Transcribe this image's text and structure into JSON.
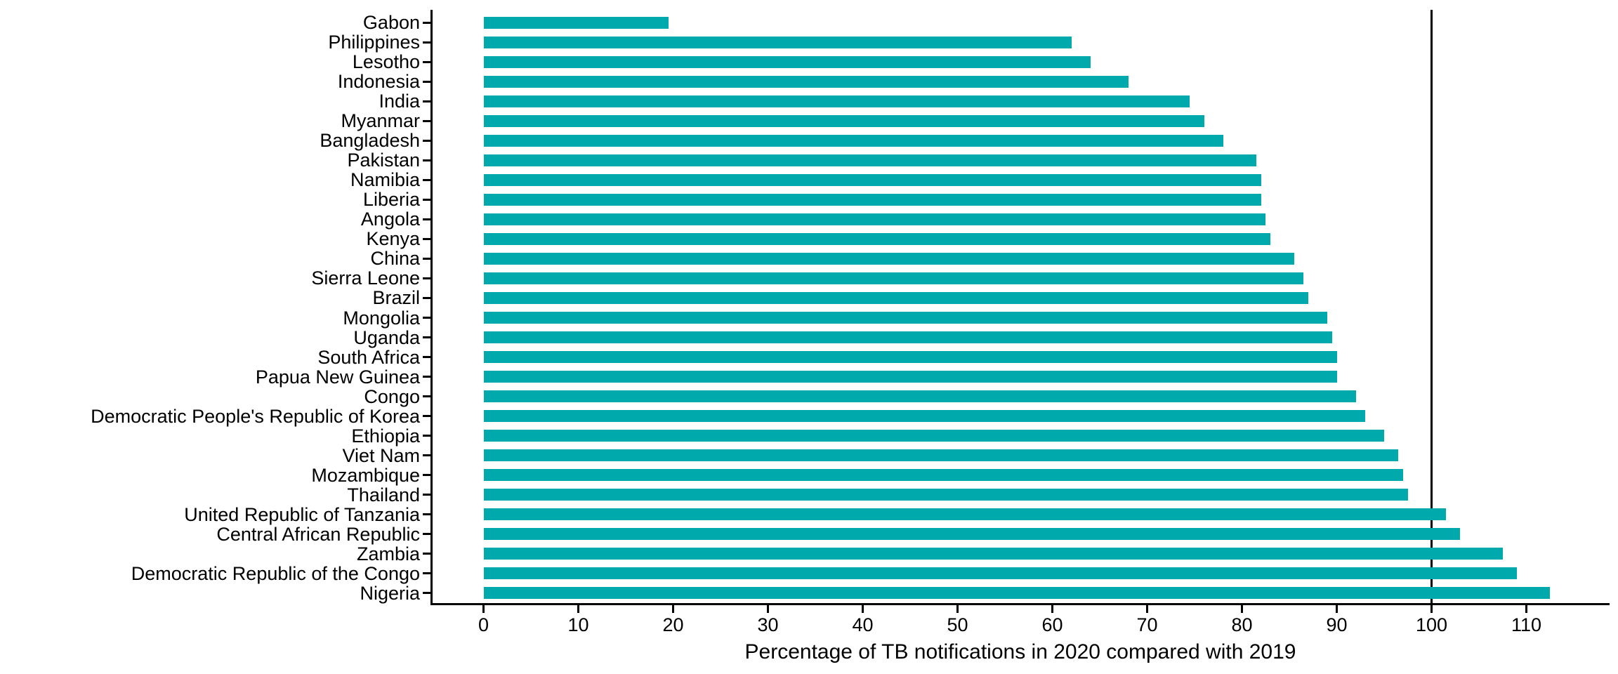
{
  "chart_data": {
    "type": "bar",
    "orientation": "horizontal",
    "title": "",
    "xlabel": "Percentage of TB notifications in 2020 compared with 2019",
    "ylabel": "",
    "categories": [
      "Gabon",
      "Philippines",
      "Lesotho",
      "Indonesia",
      "India",
      "Myanmar",
      "Bangladesh",
      "Pakistan",
      "Namibia",
      "Liberia",
      "Angola",
      "Kenya",
      "China",
      "Sierra Leone",
      "Brazil",
      "Mongolia",
      "Uganda",
      "South Africa",
      "Papua New Guinea",
      "Congo",
      "Democratic People's Republic of Korea",
      "Ethiopia",
      "Viet Nam",
      "Mozambique",
      "Thailand",
      "United Republic of Tanzania",
      "Central African Republic",
      "Zambia",
      "Democratic Republic of the Congo",
      "Nigeria"
    ],
    "values": [
      19.5,
      62,
      64,
      68,
      74.5,
      76,
      78,
      81.5,
      82,
      82,
      82.5,
      83,
      85.5,
      86.5,
      87,
      89,
      89.5,
      90,
      90,
      92,
      93,
      95,
      96.5,
      97,
      97.5,
      101.5,
      103,
      107.5,
      109,
      112.5
    ],
    "x_ticks": [
      0,
      10,
      20,
      30,
      40,
      50,
      60,
      70,
      80,
      90,
      100,
      110
    ],
    "xlim": [
      0,
      113
    ],
    "reference_line_x": 100,
    "grid": false,
    "legend": "none",
    "bar_color": "#00A9AC",
    "axis_color": "#000000",
    "background_color": "#FFFFFF"
  }
}
